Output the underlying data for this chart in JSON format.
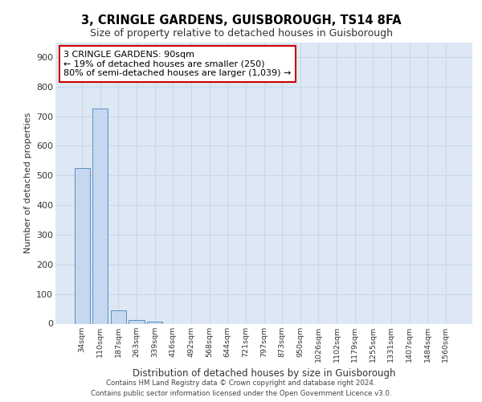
{
  "title_line1": "3, CRINGLE GARDENS, GUISBOROUGH, TS14 8FA",
  "title_line2": "Size of property relative to detached houses in Guisborough",
  "xlabel": "Distribution of detached houses by size in Guisborough",
  "ylabel": "Number of detached properties",
  "categories": [
    "34sqm",
    "110sqm",
    "187sqm",
    "263sqm",
    "339sqm",
    "416sqm",
    "492sqm",
    "568sqm",
    "644sqm",
    "721sqm",
    "797sqm",
    "873sqm",
    "950sqm",
    "1026sqm",
    "1102sqm",
    "1179sqm",
    "1255sqm",
    "1331sqm",
    "1407sqm",
    "1484sqm",
    "1560sqm"
  ],
  "values": [
    525,
    727,
    46,
    11,
    7,
    0,
    0,
    0,
    0,
    0,
    0,
    0,
    0,
    0,
    0,
    0,
    0,
    0,
    0,
    0,
    0
  ],
  "bar_color": "#c5d8f0",
  "bar_edge_color": "#5a8fc0",
  "annotation_text": "3 CRINGLE GARDENS: 90sqm\n← 19% of detached houses are smaller (250)\n80% of semi-detached houses are larger (1,039) →",
  "annotation_box_color": "#ffffff",
  "annotation_box_edge_color": "#cc0000",
  "ylim": [
    0,
    950
  ],
  "yticks": [
    0,
    100,
    200,
    300,
    400,
    500,
    600,
    700,
    800,
    900
  ],
  "grid_color": "#c8d8e8",
  "background_color": "#dde8f4",
  "footer_line1": "Contains HM Land Registry data © Crown copyright and database right 2024.",
  "footer_line2": "Contains public sector information licensed under the Open Government Licence v3.0."
}
